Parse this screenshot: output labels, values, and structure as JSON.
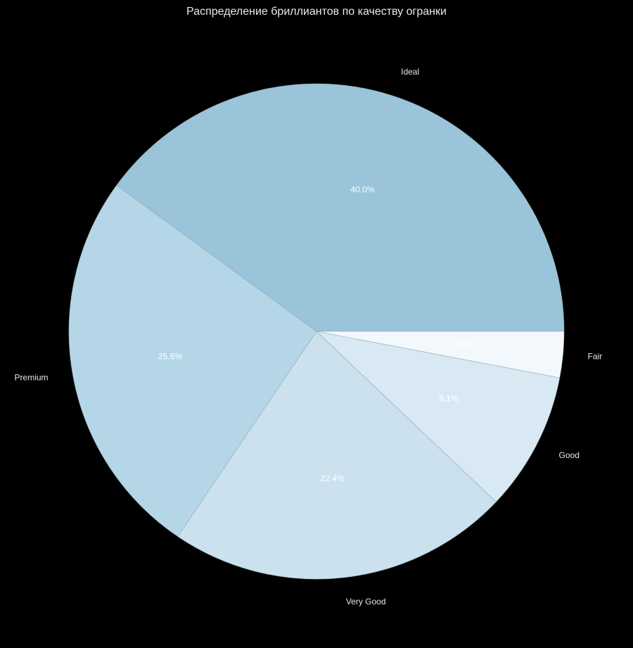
{
  "chart_data": {
    "type": "pie",
    "title": "Распределение бриллиантов по качеству огранки",
    "categories": [
      "Ideal",
      "Premium",
      "Very Good",
      "Good",
      "Fair"
    ],
    "values": [
      40.0,
      25.6,
      22.4,
      9.1,
      3.0
    ],
    "value_labels": [
      "40.0%",
      "25.6%",
      "22.4%",
      "9.1%",
      "3.0%"
    ],
    "colors": [
      "#9ac4da",
      "#b5d6e7",
      "#cbe1ee",
      "#d9e9f4",
      "#f3f8fc"
    ]
  }
}
